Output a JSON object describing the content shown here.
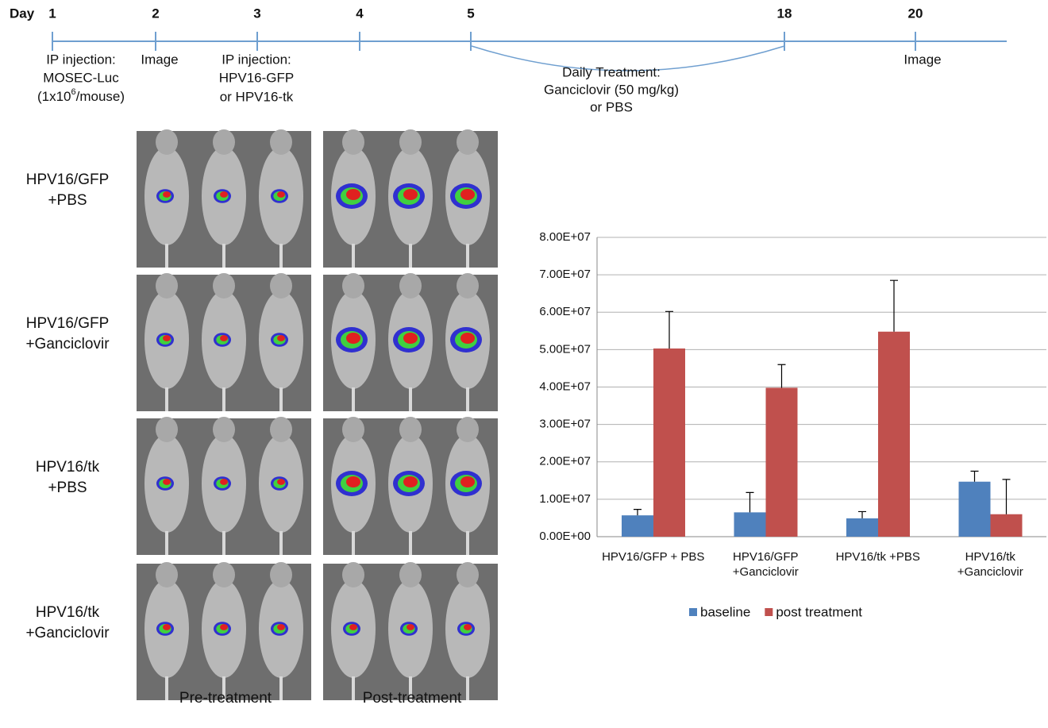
{
  "timeline": {
    "day_label": "Day",
    "days": [
      "1",
      "2",
      "3",
      "4",
      "5",
      "18",
      "20"
    ],
    "notes": {
      "day1": [
        "IP injection:",
        "MOSEC-Luc"
      ],
      "day1_dose": {
        "before": "(1x10",
        "sup": "6",
        "after": "/mouse)"
      },
      "day2": "Image",
      "day3": [
        "IP injection:",
        "HPV16-GFP",
        "or HPV16-tk"
      ],
      "treatment": [
        "Daily Treatment:",
        "Ganciclovir (50 mg/kg)",
        "or PBS"
      ],
      "day20": "Image"
    }
  },
  "imaging": {
    "groups": [
      [
        "HPV16/GFP",
        "+PBS"
      ],
      [
        "HPV16/GFP",
        "+Ganciclovir"
      ],
      [
        "HPV16/tk",
        "+PBS"
      ],
      [
        "HPV16/tk",
        "+Ganciclovir"
      ]
    ],
    "columns": [
      "Pre-treatment",
      "Post-treatment"
    ]
  },
  "chart_data": {
    "type": "bar",
    "categories": [
      "HPV16/GFP + PBS",
      "HPV16/GFP +Ganciclovir",
      "HPV16/tk +PBS",
      "HPV16/tk +Ganciclovir"
    ],
    "series": [
      {
        "name": "baseline",
        "color": "#4f81bd",
        "values": [
          5700000,
          6500000,
          4900000,
          14700000
        ],
        "errors": [
          1600000,
          5300000,
          1800000,
          2800000
        ]
      },
      {
        "name": "post treatment",
        "color": "#c0504d",
        "values": [
          50300000,
          39800000,
          54800000,
          6000000
        ],
        "errors": [
          9900000,
          6200000,
          13700000,
          9300000
        ]
      }
    ],
    "ylim": [
      0,
      80000000
    ],
    "yticks": [
      {
        "value": 0,
        "label": "0.00E+00"
      },
      {
        "value": 10000000,
        "label": "1.00E+07"
      },
      {
        "value": 20000000,
        "label": "2.00E+07"
      },
      {
        "value": 30000000,
        "label": "3.00E+07"
      },
      {
        "value": 40000000,
        "label": "4.00E+07"
      },
      {
        "value": 50000000,
        "label": "5.00E+07"
      },
      {
        "value": 60000000,
        "label": "6.00E+07"
      },
      {
        "value": 70000000,
        "label": "7.00E+07"
      },
      {
        "value": 80000000,
        "label": "8.00E+07"
      }
    ],
    "grid": true,
    "legend": "bottom"
  }
}
